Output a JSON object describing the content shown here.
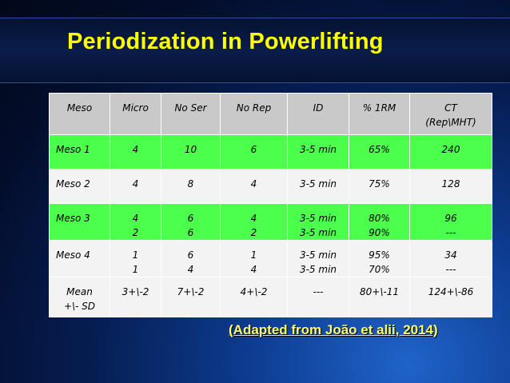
{
  "title": "Periodization in Powerlifting",
  "table": {
    "headers": [
      {
        "lines": [
          "Meso"
        ]
      },
      {
        "lines": [
          "Micro"
        ]
      },
      {
        "lines": [
          "No Ser"
        ]
      },
      {
        "lines": [
          "No Rep"
        ]
      },
      {
        "lines": [
          "ID"
        ]
      },
      {
        "lines": [
          "% 1RM"
        ]
      },
      {
        "lines": [
          "CT",
          "(Rep\\MHT)"
        ]
      }
    ],
    "rows": [
      {
        "style": "green",
        "cells": [
          [
            "Meso 1"
          ],
          [
            "4"
          ],
          [
            "10"
          ],
          [
            "6"
          ],
          [
            "3-5 min"
          ],
          [
            "65%"
          ],
          [
            "240"
          ]
        ]
      },
      {
        "style": "white",
        "cells": [
          [
            "Meso 2"
          ],
          [
            "4"
          ],
          [
            "8"
          ],
          [
            "4"
          ],
          [
            "3-5 min"
          ],
          [
            "75%"
          ],
          [
            "128"
          ]
        ]
      },
      {
        "style": "green",
        "cells": [
          [
            "Meso 3"
          ],
          [
            "4",
            "2"
          ],
          [
            "6",
            "6"
          ],
          [
            "4",
            "2"
          ],
          [
            "3-5 min",
            "3-5 min"
          ],
          [
            "80%",
            "90%"
          ],
          [
            "96",
            "---"
          ]
        ]
      },
      {
        "style": "white",
        "cells": [
          [
            "Meso 4"
          ],
          [
            "1",
            "1"
          ],
          [
            "6",
            "4"
          ],
          [
            "1",
            "4"
          ],
          [
            "3-5 min",
            "3-5 min"
          ],
          [
            "95%",
            "70%"
          ],
          [
            "34",
            "---"
          ]
        ]
      },
      {
        "style": "white",
        "cells": [
          [
            "Mean",
            "+\\- SD"
          ],
          [
            "3+\\-2"
          ],
          [
            "7+\\-2"
          ],
          [
            "4+\\-2"
          ],
          [
            "---"
          ],
          [
            "80+\\-11"
          ],
          [
            "124+\\-86"
          ]
        ]
      }
    ]
  },
  "caption": "(Adapted from João et alii, 2014)",
  "colors": {
    "title": "#ffff00",
    "green_row": "#4dff4d",
    "header_row": "#c9c9c9",
    "white_row": "#f3f3f3"
  }
}
